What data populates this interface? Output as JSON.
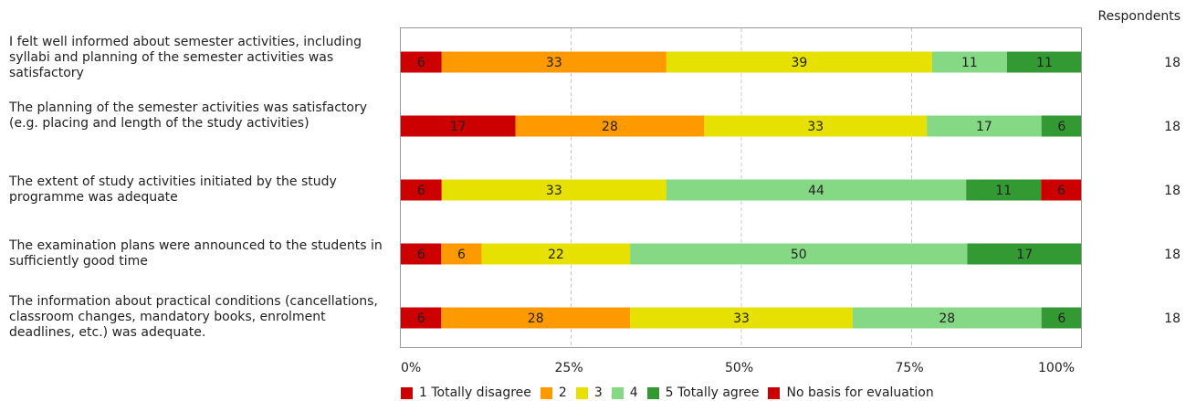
{
  "chart_data": {
    "type": "bar",
    "orientation": "horizontal",
    "stacked": true,
    "categories": [
      "I felt well informed about semester activities, including syllabi and planning of the semester activities was satisfactory",
      "The planning of the semester activities was satisfactory (e.g. placing and length of the study activities)",
      "The extent of study activities initiated by the study programme was adequate",
      "The examination plans were announced to the students in sufficiently good time",
      "The information about practical conditions (cancellations, classroom changes, mandatory books, enrolment deadlines, etc.) was adequate."
    ],
    "series": [
      {
        "name": "1 Totally disagree",
        "color": "#cc0000",
        "values": [
          6,
          17,
          6,
          6,
          6
        ]
      },
      {
        "name": "2",
        "color": "#ff9900",
        "values": [
          33,
          28,
          0,
          6,
          28
        ]
      },
      {
        "name": "3",
        "color": "#e6e100",
        "values": [
          39,
          33,
          33,
          22,
          33
        ]
      },
      {
        "name": "4",
        "color": "#85d985",
        "values": [
          11,
          17,
          44,
          50,
          28
        ]
      },
      {
        "name": "5 Totally agree",
        "color": "#339933",
        "values": [
          11,
          6,
          11,
          17,
          6
        ]
      },
      {
        "name": "No basis for evaluation",
        "color": "#cc0000",
        "values": [
          0,
          0,
          6,
          0,
          0
        ]
      }
    ],
    "respondents_label": "Respondents",
    "respondents": [
      "18",
      "18",
      "18",
      "18",
      "18"
    ],
    "xlim": [
      0,
      100
    ],
    "xticks": [
      "0%",
      "25%",
      "50%",
      "75%",
      "100%"
    ],
    "grid": "vertical dashed",
    "legend_position": "bottom"
  }
}
